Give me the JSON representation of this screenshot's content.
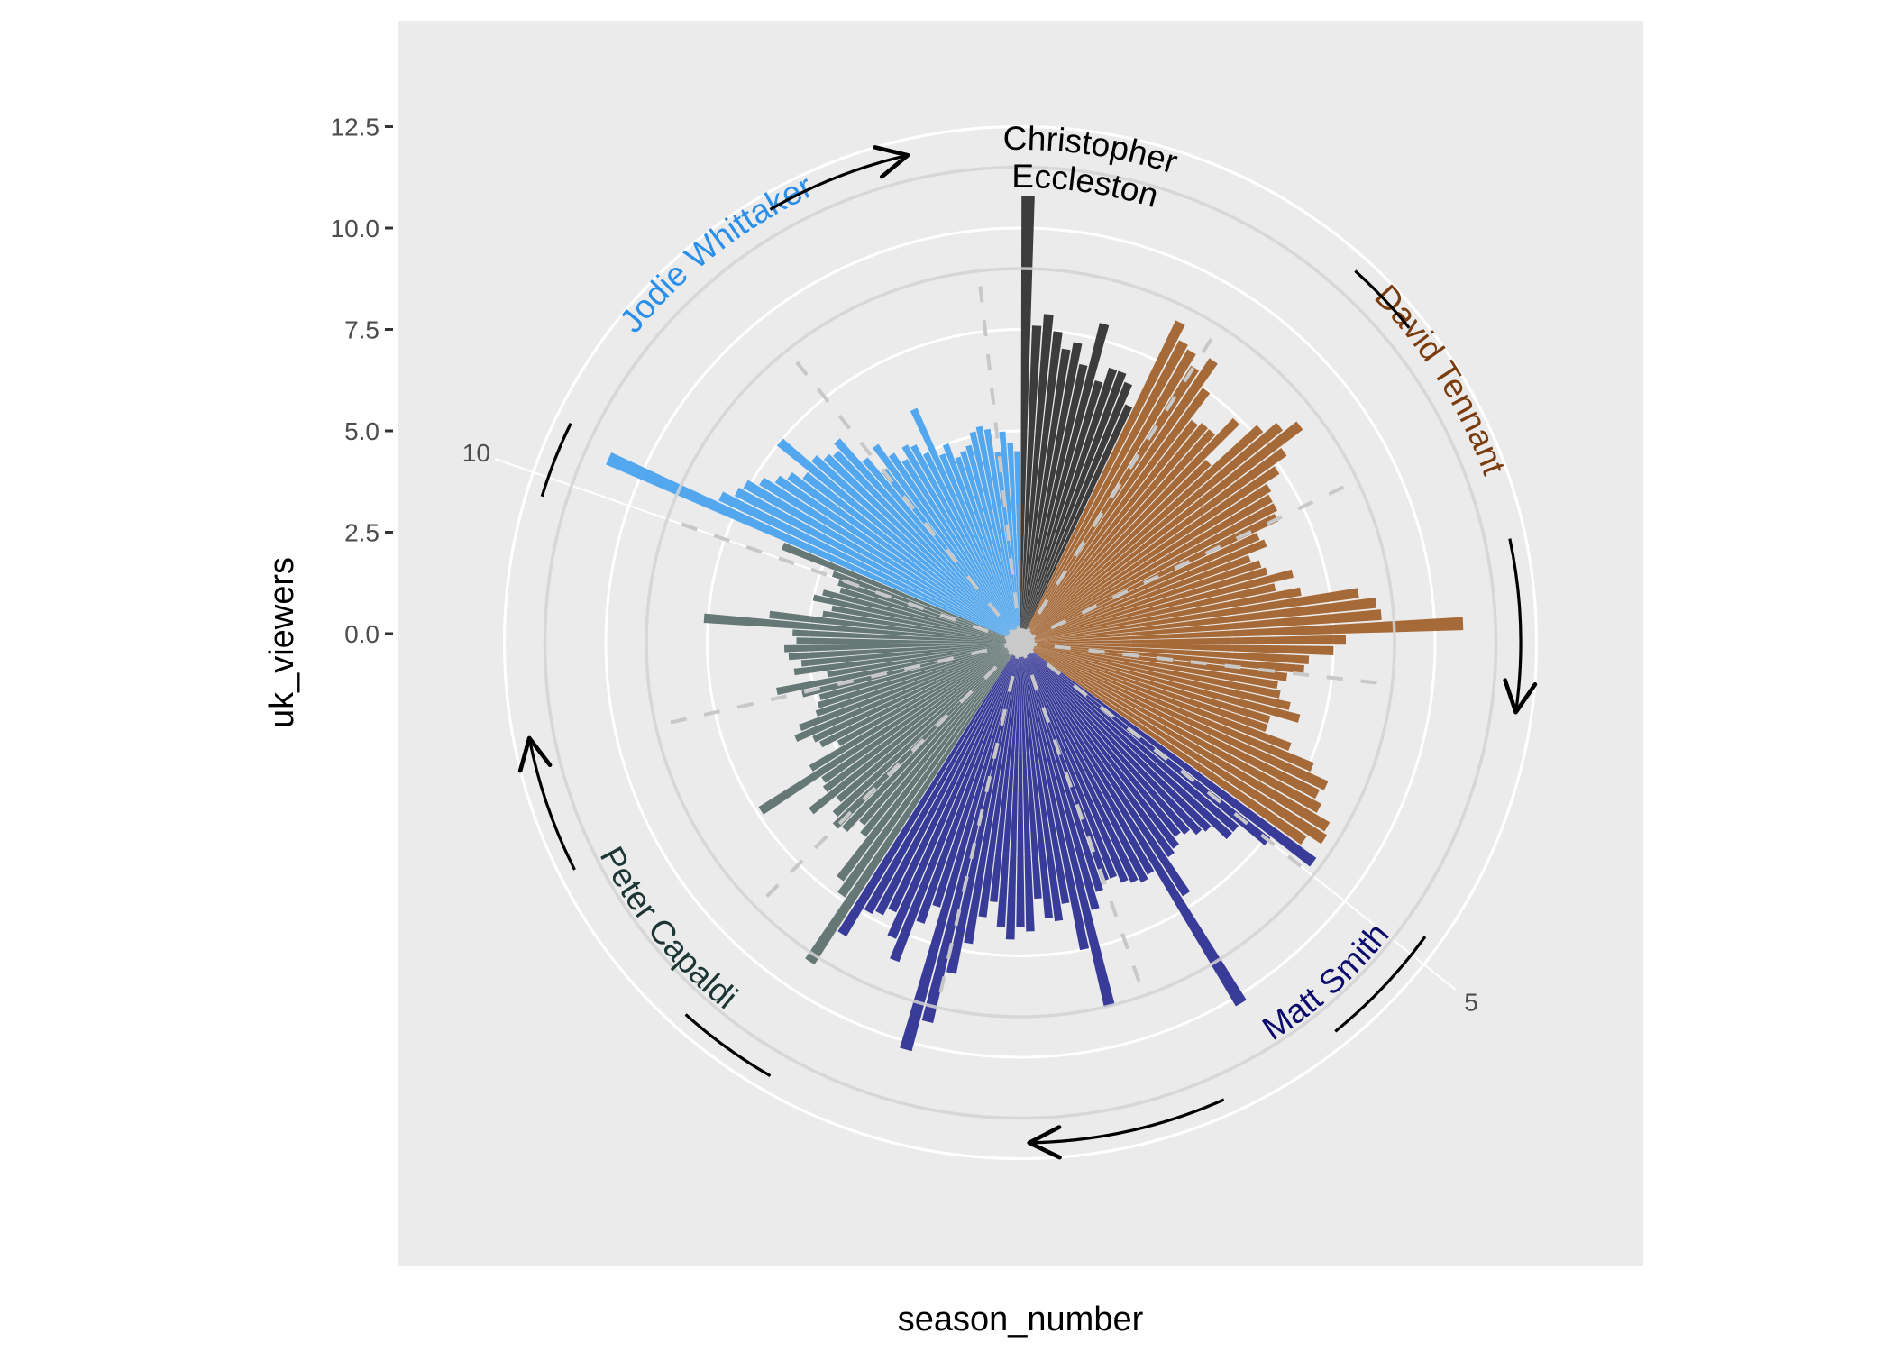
{
  "chart_data": {
    "type": "bar",
    "coord": "polar",
    "xlabel": "season_number",
    "ylabel": "uk_viewers",
    "y_ticks": [
      {
        "value": 12.5,
        "label": "12.5"
      },
      {
        "value": 10,
        "label": "10.0"
      },
      {
        "value": 7.5,
        "label": "7.5"
      },
      {
        "value": 5,
        "label": "5.0"
      },
      {
        "value": 2.5,
        "label": "2.5"
      },
      {
        "value": 0,
        "label": "0.0"
      }
    ],
    "x_ticks": [
      {
        "value": 5,
        "label": "5"
      },
      {
        "value": 10,
        "label": "10"
      }
    ],
    "ylim": [
      0,
      13.5
    ],
    "x_range": [
      1,
      12.2
    ],
    "grid": true,
    "background": "#ebebeb",
    "series": [
      {
        "name": "Christopher Eccleston",
        "color": "#333333",
        "values": [
          10.8,
          7.6,
          7.9,
          7.5,
          7.1,
          7.3,
          6.8,
          7.9,
          6.5,
          6.9,
          6.9,
          6.7,
          6.2
        ]
      },
      {
        "name": "David Tennant",
        "color": "#a2632f",
        "values": [
          8.6,
          8.2,
          8.1,
          7.8,
          8.2,
          7.5,
          6.7,
          6.8,
          6.8,
          7.4,
          6.2,
          7.7,
          8.1,
          8.5,
          7.8,
          7.4,
          7.0,
          6.9,
          6.9,
          6.8,
          6.2,
          6.3,
          5.8,
          6.0,
          6.1,
          6.7,
          6.2,
          6.8,
          8.2,
          8.6,
          8.7,
          10.7,
          7.8,
          7.5,
          6.9,
          6.8,
          6.4,
          6.2,
          6.3,
          6.6,
          6.9,
          6.2,
          6.2,
          6.9,
          7.6,
          8.1,
          8.0,
          8.2,
          8.6,
          8.7,
          8.3
        ]
      },
      {
        "name": "Matt Smith",
        "color": "#2e3192",
        "values": [
          8.8,
          7.6,
          6.8,
          6.8,
          6.3,
          6.2,
          6.0,
          5.9,
          6.1,
          6.2,
          7.2,
          10.2,
          6.3,
          6.4,
          6.3,
          6.2,
          6.0,
          6.0,
          6.2,
          6.6,
          9.0,
          7.5,
          6.3,
          6.7,
          6.6,
          6.1,
          6.9,
          6.8,
          7.1,
          6.8,
          6.2,
          6.6,
          7.3,
          8.1,
          9.4,
          10.2,
          6.6,
          7.1,
          8.2,
          7.7,
          7.1,
          7.3,
          7.4,
          8.2
        ]
      },
      {
        "name": "Peter Capaldi",
        "color": "#5e7270",
        "values": [
          9.2,
          7.4,
          7.1,
          5.9,
          5.7,
          6.1,
          6.2,
          6.0,
          5.7,
          6.4,
          5.8,
          5.7,
          7.4,
          5.8,
          4.9,
          5.3,
          5.4,
          5.8,
          5.6,
          5.1,
          5.0,
          4.9,
          5.3,
          5.9,
          4.6,
          5.4,
          5.2,
          5.5,
          5.6,
          5.3,
          5.4,
          7.6,
          6.0,
          4.7,
          4.5,
          5.0,
          4.8,
          4.4,
          4.5,
          4.7,
          6.1
        ]
      },
      {
        "name": "Jodie Whittaker",
        "color": "#4aa3ee",
        "values": [
          10.9,
          8.0,
          7.7,
          7.6,
          7.3,
          7.0,
          6.8,
          6.5,
          7.5,
          6.6,
          6.4,
          6.3,
          6.5,
          5.7,
          5.2,
          5.8,
          5.4,
          5.1,
          5.4,
          5.3,
          5.0,
          6.1,
          4.8,
          5.0,
          4.6,
          4.7,
          4.8,
          5.1,
          5.2,
          5.1,
          4.5,
          5.0,
          4.7,
          4.5
        ]
      }
    ],
    "season_breaks": [
      2,
      3,
      4,
      5,
      6,
      7,
      8,
      9,
      10,
      11,
      12
    ],
    "annotations": [
      {
        "name": "Christopher Eccleston",
        "lines": [
          "Christopher",
          "Eccleston"
        ],
        "color": "#000000"
      },
      {
        "name": "David Tennant",
        "lines": [
          "David Tennant"
        ],
        "color": "#7a3c0e"
      },
      {
        "name": "Matt Smith",
        "lines": [
          "Matt Smith"
        ],
        "color": "#0c0c6e"
      },
      {
        "name": "Peter Capaldi",
        "lines": [
          "Peter Capaldi"
        ],
        "color": "#1d3535"
      },
      {
        "name": "Jodie Whittaker",
        "lines": [
          "Jodie Whittaker"
        ],
        "color": "#2a8fe8"
      }
    ]
  }
}
